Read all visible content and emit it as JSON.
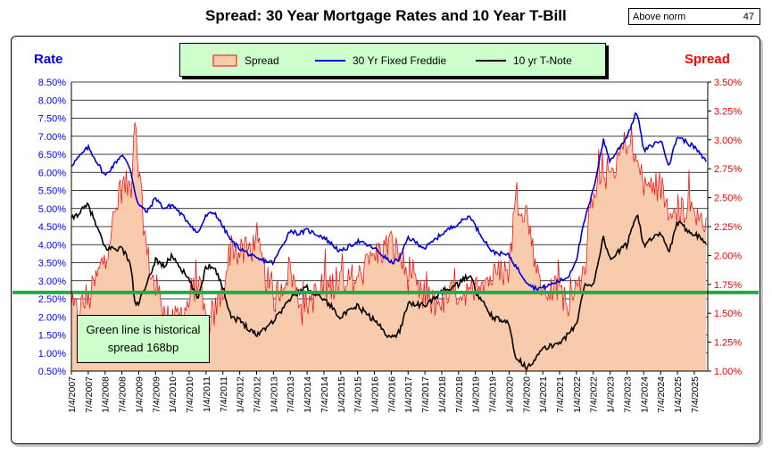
{
  "header": {
    "title": "Spread:  30 Year Mortgage Rates and 10 Year T-Bill",
    "norm_label": "Above norm",
    "norm_value": "47"
  },
  "axes": {
    "left_title": "Rate",
    "right_title": "Spread",
    "left_ticks": [
      "0.50%",
      "1.00%",
      "1.50%",
      "2.00%",
      "2.50%",
      "3.00%",
      "3.50%",
      "4.00%",
      "4.50%",
      "5.00%",
      "5.50%",
      "6.00%",
      "6.50%",
      "7.00%",
      "7.50%",
      "8.00%",
      "8.50%"
    ],
    "right_ticks": [
      "1.00%",
      "1.25%",
      "1.50%",
      "1.75%",
      "2.00%",
      "2.25%",
      "2.50%",
      "2.75%",
      "3.00%",
      "3.25%",
      "3.50%"
    ],
    "x_ticks": [
      "1/4/2007",
      "7/4/2007",
      "1/4/2008",
      "7/4/2008",
      "1/4/2009",
      "7/4/2009",
      "1/4/2010",
      "7/4/2010",
      "1/4/2011",
      "7/4/2011",
      "1/4/2012",
      "7/4/2012",
      "1/4/2013",
      "7/4/2013",
      "1/4/2014",
      "7/4/2014",
      "1/4/2015",
      "7/4/2015",
      "1/4/2016",
      "7/4/2016",
      "1/4/2017",
      "7/4/2017",
      "1/4/2018",
      "7/4/2018",
      "1/4/2019",
      "7/4/2019",
      "1/4/2020",
      "7/4/2020",
      "1/4/2021",
      "7/4/2021",
      "1/4/2022",
      "7/4/2022",
      "1/4/2023",
      "7/4/2023",
      "1/4/2024",
      "7/4/2024",
      "1/4/2025",
      "7/4/2025"
    ]
  },
  "legend": {
    "spread": "Spread",
    "mortgage": "30 Yr Fixed Freddie",
    "tnote": "10 yr T-Note"
  },
  "callout": {
    "line1": "Green line is historical",
    "line2": "spread 168bp"
  },
  "colors": {
    "spread_fill": "#f8cbad",
    "spread_line": "#ff0000",
    "mortgage": "#0000dd",
    "tnote": "#000000",
    "norm_line": "#22aa44",
    "left_axis": "#0000ff",
    "right_axis": "#ff0000"
  },
  "chart_data": {
    "type": "line",
    "title": "Spread:  30 Year Mortgage Rates and 10 Year T-Bill",
    "left_ylabel": "Rate",
    "right_ylabel": "Spread",
    "left_ylim": [
      0.5,
      8.5
    ],
    "right_ylim": [
      1.0,
      3.5
    ],
    "grid": true,
    "legend_position": "top-center",
    "historical_spread": 1.68,
    "x": [
      2007.0,
      2007.5,
      2008.0,
      2008.5,
      2008.75,
      2008.9,
      2009.0,
      2009.25,
      2009.5,
      2009.75,
      2010.0,
      2010.5,
      2010.75,
      2011.0,
      2011.25,
      2011.5,
      2011.75,
      2012.0,
      2012.5,
      2013.0,
      2013.5,
      2013.75,
      2014.0,
      2014.5,
      2015.0,
      2015.5,
      2016.0,
      2016.5,
      2016.75,
      2017.0,
      2017.5,
      2018.0,
      2018.5,
      2018.85,
      2019.0,
      2019.5,
      2020.0,
      2020.2,
      2020.5,
      2020.75,
      2021.0,
      2021.5,
      2021.75,
      2022.0,
      2022.25,
      2022.5,
      2022.8,
      2023.0,
      2023.5,
      2023.8,
      2024.0,
      2024.5,
      2024.75,
      2025.0,
      2025.5,
      2025.85
    ],
    "series": [
      {
        "name": "30 Yr Fixed Freddie",
        "axis": "left",
        "values": [
          6.2,
          6.7,
          5.9,
          6.5,
          6.1,
          5.4,
          5.1,
          4.9,
          5.3,
          5.0,
          5.1,
          4.6,
          4.3,
          4.8,
          4.9,
          4.5,
          4.1,
          3.9,
          3.6,
          3.5,
          4.4,
          4.3,
          4.4,
          4.2,
          3.8,
          4.1,
          3.9,
          3.5,
          3.6,
          4.2,
          3.9,
          4.3,
          4.6,
          4.8,
          4.5,
          3.8,
          3.7,
          3.4,
          3.0,
          2.8,
          2.8,
          3.0,
          3.1,
          3.6,
          4.7,
          5.5,
          6.9,
          6.3,
          7.0,
          7.7,
          6.6,
          6.9,
          6.2,
          7.0,
          6.7,
          6.3
        ]
      },
      {
        "name": "10 yr T-Note",
        "axis": "left",
        "values": [
          4.7,
          5.1,
          3.9,
          3.9,
          3.5,
          2.3,
          2.4,
          2.9,
          3.6,
          3.4,
          3.7,
          3.0,
          2.5,
          3.4,
          3.4,
          2.8,
          2.0,
          1.9,
          1.5,
          1.9,
          2.5,
          2.7,
          2.8,
          2.5,
          2.0,
          2.3,
          1.9,
          1.4,
          1.6,
          2.4,
          2.3,
          2.7,
          2.9,
          3.2,
          2.7,
          2.0,
          1.8,
          0.9,
          0.6,
          0.8,
          1.1,
          1.3,
          1.5,
          1.8,
          2.9,
          2.9,
          4.2,
          3.6,
          4.0,
          4.9,
          4.0,
          4.3,
          3.8,
          4.6,
          4.3,
          4.1
        ]
      },
      {
        "name": "Spread",
        "axis": "right",
        "values": [
          1.5,
          1.6,
          2.0,
          2.6,
          2.6,
          3.1,
          2.7,
          2.0,
          1.7,
          1.6,
          1.4,
          1.6,
          1.8,
          1.4,
          1.5,
          1.7,
          2.1,
          2.0,
          2.1,
          1.6,
          1.9,
          1.6,
          1.6,
          1.7,
          1.8,
          1.8,
          2.0,
          2.1,
          2.0,
          1.8,
          1.6,
          1.6,
          1.7,
          1.6,
          1.8,
          1.8,
          1.9,
          2.5,
          2.4,
          2.0,
          1.7,
          1.7,
          1.6,
          1.8,
          1.8,
          2.6,
          2.7,
          2.7,
          3.0,
          2.8,
          2.6,
          2.6,
          2.4,
          2.4,
          2.4,
          2.2
        ]
      }
    ]
  }
}
